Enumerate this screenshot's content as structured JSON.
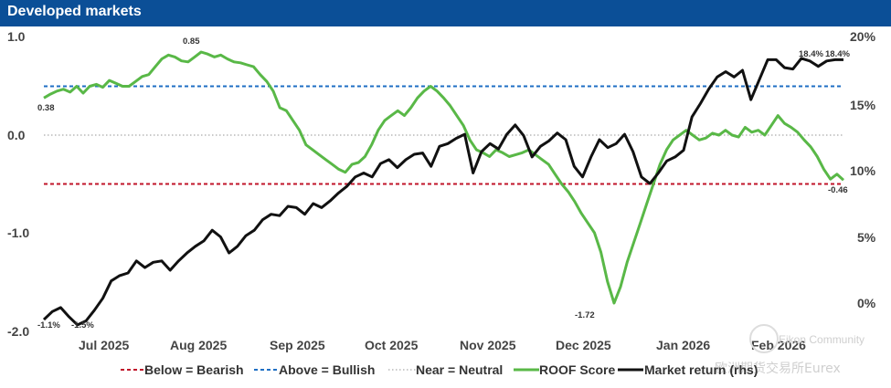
{
  "title": "Developed markets",
  "chart_data": {
    "type": "line",
    "x_tick_labels": [
      "Jul 2025",
      "Aug 2025",
      "Sep 2025",
      "Oct 2025",
      "Nov 2025",
      "Dec 2025",
      "Jan 2026",
      "Feb 2026"
    ],
    "y_left": {
      "ylim": [
        -2.0,
        1.0
      ],
      "ticks": [
        "1.0",
        "0.0",
        "-1.0",
        "-2.0"
      ],
      "tick_values": [
        1.0,
        0.0,
        -1.0,
        -2.0
      ]
    },
    "y_right": {
      "ylim": [
        -2.0,
        20.0
      ],
      "ticks": [
        "20%",
        "15%",
        "10%",
        "5%",
        "0%"
      ],
      "tick_values": [
        20,
        15,
        10,
        5,
        0
      ]
    },
    "reference_lines": [
      {
        "name": "Below = Bearish",
        "value": -0.5,
        "color": "#c0152a",
        "style": "dashed"
      },
      {
        "name": "Above = Bullish",
        "value": 0.5,
        "color": "#1f6fc4",
        "style": "dashed"
      },
      {
        "name": "Near = Neutral",
        "value": 0.0,
        "color": "#b8b8b8",
        "style": "dotted"
      }
    ],
    "series": [
      {
        "name": "ROOF Score",
        "axis": "left",
        "color": "#59b847",
        "values": [
          0.38,
          0.42,
          0.45,
          0.47,
          0.44,
          0.5,
          0.43,
          0.5,
          0.52,
          0.49,
          0.56,
          0.53,
          0.5,
          0.5,
          0.55,
          0.6,
          0.62,
          0.7,
          0.78,
          0.82,
          0.8,
          0.76,
          0.75,
          0.8,
          0.85,
          0.83,
          0.8,
          0.82,
          0.78,
          0.75,
          0.74,
          0.72,
          0.7,
          0.62,
          0.55,
          0.45,
          0.28,
          0.25,
          0.15,
          0.05,
          -0.1,
          -0.15,
          -0.2,
          -0.25,
          -0.3,
          -0.35,
          -0.38,
          -0.3,
          -0.28,
          -0.22,
          -0.1,
          0.05,
          0.15,
          0.2,
          0.25,
          0.2,
          0.28,
          0.38,
          0.45,
          0.5,
          0.45,
          0.38,
          0.3,
          0.2,
          0.1,
          -0.05,
          -0.15,
          -0.18,
          -0.22,
          -0.15,
          -0.18,
          -0.22,
          -0.2,
          -0.18,
          -0.15,
          -0.2,
          -0.25,
          -0.3,
          -0.4,
          -0.5,
          -0.58,
          -0.68,
          -0.8,
          -0.9,
          -1.0,
          -1.2,
          -1.5,
          -1.72,
          -1.55,
          -1.3,
          -1.1,
          -0.9,
          -0.7,
          -0.5,
          -0.3,
          -0.15,
          -0.05,
          0.0,
          0.05,
          0.0,
          -0.05,
          -0.03,
          0.02,
          0.0,
          0.05,
          0.0,
          -0.02,
          0.08,
          0.03,
          0.05,
          0.0,
          0.1,
          0.2,
          0.12,
          0.08,
          0.03,
          -0.05,
          -0.12,
          -0.22,
          -0.35,
          -0.45,
          -0.4,
          -0.46
        ],
        "end_label": "-0.46",
        "annotations": [
          "0.38",
          "0.85",
          "-1.72",
          "-0.46"
        ]
      },
      {
        "name": "Market return (rhs)",
        "axis": "right",
        "color": "#111111",
        "values": [
          -1.1,
          -0.5,
          -0.2,
          -0.9,
          -1.5,
          -1.2,
          -0.4,
          0.5,
          1.8,
          2.2,
          2.4,
          3.3,
          2.8,
          3.2,
          3.3,
          2.6,
          3.3,
          3.9,
          4.4,
          4.8,
          5.6,
          5.1,
          3.9,
          4.4,
          5.2,
          5.6,
          6.4,
          6.8,
          6.7,
          7.4,
          7.3,
          6.8,
          7.6,
          7.3,
          7.8,
          8.4,
          8.9,
          9.6,
          9.9,
          9.6,
          10.6,
          10.9,
          10.3,
          10.9,
          11.3,
          11.4,
          10.4,
          11.9,
          12.1,
          12.5,
          12.8,
          9.9,
          11.5,
          12.1,
          11.7,
          12.8,
          13.5,
          12.7,
          11.1,
          11.9,
          12.3,
          12.9,
          12.4,
          10.4,
          9.6,
          11.1,
          12.4,
          11.8,
          12.1,
          12.8,
          11.5,
          9.6,
          9.1,
          9.9,
          10.8,
          11.1,
          11.6,
          14.1,
          15.1,
          16.2,
          17.1,
          17.5,
          17.1,
          17.6,
          15.4,
          16.9,
          18.4,
          18.4,
          17.8,
          17.7,
          18.5,
          18.3,
          17.9,
          18.3,
          18.4,
          18.4
        ],
        "annotations": [
          "-1.1%",
          "-1.5%",
          "18.4%",
          "18.4%"
        ]
      }
    ],
    "legend_position": "bottom"
  },
  "legend": {
    "below": "Below = Bearish",
    "above": "Above = Bullish",
    "near": "Near = Neutral",
    "roof": "ROOF Score",
    "market": "Market return (rhs)"
  },
  "watermark": {
    "line1": "Eikon Community",
    "line2": "欧洲期货交易所Eurex"
  }
}
